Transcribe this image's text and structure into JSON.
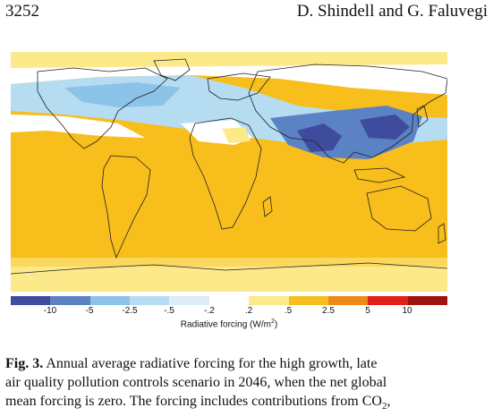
{
  "header": {
    "page_number": "3252",
    "authors": "D. Shindell and G. Faluvegi"
  },
  "figure": {
    "colorbar": {
      "title_main": "Radiative forcing (W/m",
      "title_sup": "2",
      "title_end": ")",
      "ticks": [
        "-10",
        "-5",
        "-2.5",
        "-.5",
        "-.2",
        ".2",
        ".5",
        "2.5",
        "5",
        "10"
      ],
      "colors": [
        "#3f4c9e",
        "#5b82c4",
        "#8cc3e8",
        "#b6dcf2",
        "#dcedf7",
        "#ffffff",
        "#fce98a",
        "#f7be1c",
        "#ee8a1a",
        "#e0221a",
        "#9e1411"
      ]
    },
    "map_colors": {
      "ocean": "#f7be1c",
      "light_blue": "#b6dcf2",
      "mid_blue": "#8cc3e8",
      "blue": "#5b82c4",
      "dark_blue": "#3f4c9e",
      "white": "#ffffff",
      "pale_yellow": "#fce98a"
    }
  },
  "caption": {
    "label": "Fig. 3.",
    "text_line1": " Annual average radiative forcing for the high growth, late",
    "text_line2": "air quality pollution controls scenario in 2046, when the net global",
    "text_line3a": "mean forcing is zero. The forcing includes contributions from CO",
    "text_line3_sub": "2",
    "text_line3b": ","
  }
}
